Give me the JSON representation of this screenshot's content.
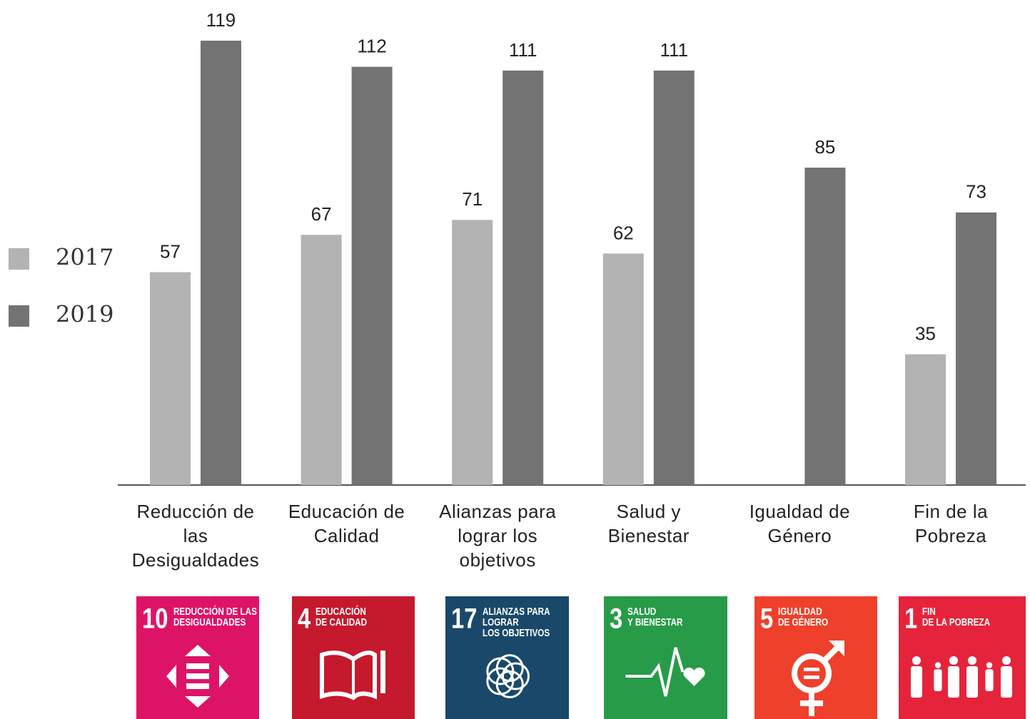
{
  "chart_data": {
    "type": "bar",
    "categories": [
      "Reducción de las Desigualdades",
      "Educación de Calidad",
      "Alianzas para lograr los objetivos",
      "Salud y Bienestar",
      "Igualdad de Género",
      "Fin de la Pobreza"
    ],
    "series": [
      {
        "name": "2017",
        "color": "#b3b3b3",
        "values": [
          57,
          67,
          71,
          62,
          null,
          35
        ]
      },
      {
        "name": "2019",
        "color": "#737373",
        "values": [
          119,
          112,
          111,
          111,
          85,
          73
        ]
      }
    ],
    "icons": [
      {
        "number": "10",
        "lines": [
          "REDUCCIÓN DE LAS",
          "DESIGUALDADES"
        ],
        "color": "#dd1367"
      },
      {
        "number": "4",
        "lines": [
          "EDUCACIÓN",
          "DE CALIDAD"
        ],
        "color": "#c5192d"
      },
      {
        "number": "17",
        "lines": [
          "ALIANZAS PARA",
          "LOGRAR",
          "LOS OBJETIVOS"
        ],
        "color": "#19486a"
      },
      {
        "number": "3",
        "lines": [
          "SALUD",
          "Y BIENESTAR"
        ],
        "color": "#279b48"
      },
      {
        "number": "5",
        "lines": [
          "IGUALDAD",
          "DE GÉNERO"
        ],
        "color": "#ef402b"
      },
      {
        "number": "1",
        "lines": [
          "FIN",
          "DE LA POBREZA"
        ],
        "color": "#e5243b"
      }
    ]
  }
}
